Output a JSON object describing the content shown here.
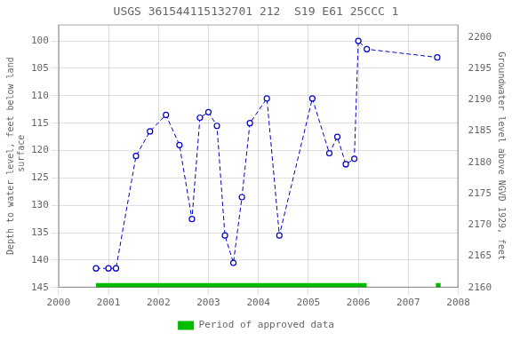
{
  "chart_data": {
    "type": "line",
    "title": "USGS 361544115132701 212  S19 E61 25CCC 1",
    "ylabel": "Depth to water level, feet below land\n surface",
    "y2label": "Groundwater level above NGVD 1929, feet",
    "x": [
      2000.75,
      2001.0,
      2001.15,
      2001.55,
      2001.83,
      2002.15,
      2002.42,
      2002.67,
      2002.83,
      2003.0,
      2003.17,
      2003.33,
      2003.5,
      2003.67,
      2003.83,
      2004.17,
      2004.42,
      2005.08,
      2005.42,
      2005.58,
      2005.75,
      2005.92,
      2006.0,
      2006.17,
      2007.58
    ],
    "values": [
      141.5,
      141.5,
      141.5,
      121.0,
      116.5,
      113.5,
      119.0,
      132.5,
      114.0,
      113.0,
      115.5,
      135.5,
      140.5,
      128.5,
      115.0,
      110.5,
      135.5,
      110.5,
      120.5,
      117.5,
      122.5,
      121.5,
      100.0,
      101.5,
      103.0
    ],
    "color": "#0000cc",
    "marker": "circle",
    "line_style": "dashed",
    "xlim": [
      2000,
      2008
    ],
    "xticks": [
      2000,
      2001,
      2002,
      2003,
      2004,
      2005,
      2006,
      2007,
      2008
    ],
    "ylim": [
      145,
      97
    ],
    "yticks": [
      100,
      105,
      110,
      115,
      120,
      125,
      130,
      135,
      140,
      145
    ],
    "y2lim": [
      2160,
      2202
    ],
    "y2ticks": [
      2160,
      2165,
      2170,
      2175,
      2180,
      2185,
      2190,
      2195,
      2200
    ],
    "grid": true,
    "legend": "bottom",
    "approved_periods": {
      "name": "Period of approved data",
      "color": "#00bb00",
      "segments": [
        [
          2000.75,
          2006.17
        ],
        [
          2007.55,
          2007.65
        ]
      ],
      "band": [
        144.2,
        145.0
      ]
    }
  }
}
